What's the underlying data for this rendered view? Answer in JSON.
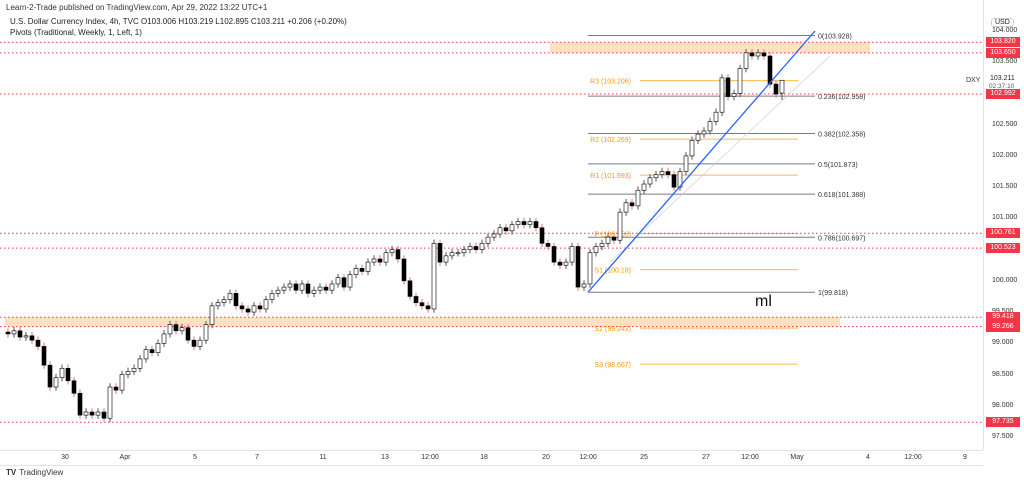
{
  "header": {
    "published": "Learn-2-Trade published on TradingView.com, Apr 29, 2022 13:22 UTC+1",
    "symbol_line": "U.S. Dollar Currency Index, 4h, TVC  O103.006  H103.219  L102.895  C103.211  +0.206 (+0.20%)",
    "pivots_line": "Pivots (Traditional, Weekly, 1, Left, 1)"
  },
  "price_axis": {
    "currency": "USD",
    "ticker": "DXY",
    "last_price": "103.211",
    "countdown": "02:37:10",
    "ticks": [
      "104.000",
      "103.500",
      "102.500",
      "102.000",
      "101.500",
      "101.000",
      "100.000",
      "99.500",
      "99.000",
      "98.500",
      "98.000",
      "97.500"
    ]
  },
  "time_axis": [
    "30",
    "Apr",
    "5",
    "7",
    "11",
    "13",
    "12:00",
    "18",
    "20",
    "12:00",
    "25",
    "27",
    "12:00",
    "May",
    "4",
    "12:00",
    "9"
  ],
  "footer": {
    "logo": "TV",
    "brand": "TradingView"
  },
  "annotation_text": "ml",
  "colors": {
    "up": "#ffffff",
    "down": "#000000",
    "wick": "#555555",
    "level": "#f23645",
    "zone": "#fcd9b0",
    "pivot": "#ff9800",
    "trend": "#2962ff",
    "fib": "#787b86"
  },
  "chart_data": {
    "type": "candlestick",
    "title": "U.S. Dollar Currency Index, 4h, TVC",
    "ylim": [
      97.4,
      104.2
    ],
    "first_open": 99.18,
    "last_candle": {
      "open": 103.006,
      "high": 103.219,
      "low": 102.895,
      "close": 103.211
    },
    "closes": [
      99.15,
      99.2,
      99.1,
      99.12,
      99.05,
      98.95,
      98.65,
      98.3,
      98.45,
      98.6,
      98.4,
      98.2,
      97.85,
      97.9,
      97.85,
      97.9,
      97.8,
      98.3,
      98.25,
      98.5,
      98.55,
      98.6,
      98.75,
      98.9,
      98.85,
      99.0,
      99.15,
      99.3,
      99.2,
      99.25,
      99.05,
      98.95,
      99.05,
      99.3,
      99.6,
      99.65,
      99.7,
      99.8,
      99.6,
      99.55,
      99.5,
      99.6,
      99.55,
      99.7,
      99.8,
      99.85,
      99.9,
      99.95,
      99.85,
      99.95,
      99.8,
      99.85,
      99.9,
      99.85,
      99.95,
      100.05,
      99.9,
      100.1,
      100.2,
      100.15,
      100.3,
      100.35,
      100.3,
      100.45,
      100.5,
      100.35,
      100.0,
      99.75,
      99.65,
      99.6,
      99.55,
      100.6,
      100.3,
      100.4,
      100.45,
      100.45,
      100.5,
      100.55,
      100.5,
      100.6,
      100.7,
      100.75,
      100.85,
      100.8,
      100.9,
      100.95,
      100.9,
      100.95,
      100.85,
      100.6,
      100.55,
      100.3,
      100.25,
      100.3,
      100.55,
      99.9,
      99.95,
      100.45,
      100.55,
      100.6,
      100.7,
      100.65,
      101.1,
      101.25,
      101.2,
      101.45,
      101.55,
      101.65,
      101.7,
      101.75,
      101.7,
      101.5,
      101.75,
      102.0,
      102.25,
      102.35,
      102.4,
      102.55,
      102.7,
      103.25,
      102.95,
      103.0,
      103.4,
      103.65,
      103.6,
      103.65,
      103.6,
      103.15,
      102.99,
      103.211
    ],
    "horizontal_levels": [
      {
        "price": 103.82,
        "label": "103.820"
      },
      {
        "price": 103.65,
        "label": "103.650"
      },
      {
        "price": 102.992,
        "label": "102.992"
      },
      {
        "price": 100.761,
        "label": "100.761"
      },
      {
        "price": 100.523,
        "label": "100.523"
      },
      {
        "price": 99.418,
        "label": "99.418"
      },
      {
        "price": 99.266,
        "label": "99.266"
      },
      {
        "price": 97.735,
        "label": "97.735"
      }
    ],
    "zones": [
      [
        103.65,
        103.82
      ],
      [
        99.266,
        99.418
      ]
    ],
    "fibonacci": [
      {
        "price": 103.928,
        "label": "0(103.928)"
      },
      {
        "price": 102.958,
        "label": "0.236(102.958)"
      },
      {
        "price": 102.358,
        "label": "0.382(102.358)"
      },
      {
        "price": 101.873,
        "label": "0.5(101.873)"
      },
      {
        "price": 101.388,
        "label": "0.618(101.388)"
      },
      {
        "price": 100.697,
        "label": "0.786(100.697)"
      },
      {
        "price": 99.818,
        "label": "1(99.818)"
      }
    ],
    "pivots": [
      {
        "price": 103.206,
        "label": "R3 (103.206)"
      },
      {
        "price": 102.269,
        "label": "R2 (102.269)"
      },
      {
        "price": 101.693,
        "label": "R1 (101.693)"
      },
      {
        "price": 100.756,
        "label": "P (100.756)"
      },
      {
        "price": 100.18,
        "label": "S1 (100.18)"
      },
      {
        "price": 99.243,
        "label": "S2 (99.243)"
      },
      {
        "price": 98.667,
        "label": "S3 (98.667)"
      }
    ],
    "trendline": {
      "from_price": 99.818,
      "to_price": 104.0
    }
  }
}
